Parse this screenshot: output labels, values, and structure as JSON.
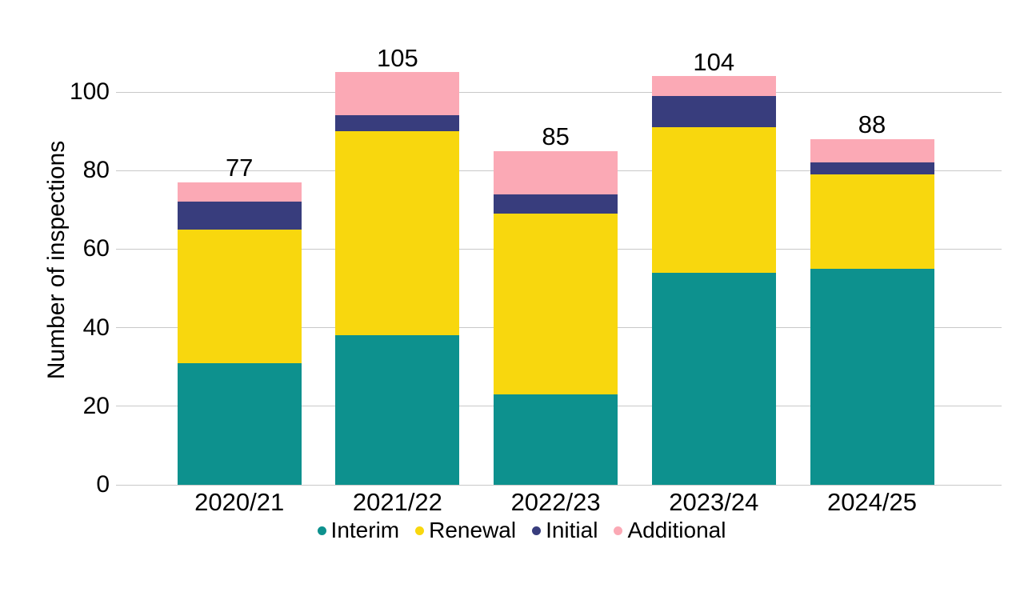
{
  "chart_data": {
    "type": "bar",
    "stacked": true,
    "title": "",
    "xlabel": "",
    "ylabel": "Number of inspections",
    "categories": [
      "2020/21",
      "2021/22",
      "2022/23",
      "2023/24",
      "2024/25"
    ],
    "series": [
      {
        "name": "Interim",
        "color": "#0d918e",
        "values": [
          31,
          38,
          23,
          54,
          55
        ]
      },
      {
        "name": "Renewal",
        "color": "#f8d70e",
        "values": [
          34,
          52,
          46,
          37,
          24
        ]
      },
      {
        "name": "Initial",
        "color": "#383d7d",
        "values": [
          7,
          4,
          5,
          8,
          3
        ]
      },
      {
        "name": "Additional",
        "color": "#fba9b5",
        "values": [
          5,
          11,
          11,
          5,
          6
        ]
      }
    ],
    "totals": [
      77,
      105,
      85,
      104,
      88
    ],
    "yticks": [
      0,
      20,
      40,
      60,
      80,
      100
    ],
    "ylim": [
      0,
      105
    ],
    "grid": true,
    "grid_color": "#c9c9c9",
    "legend_position": "bottom",
    "text_color": "#000000",
    "background_color": "#ffffff"
  }
}
